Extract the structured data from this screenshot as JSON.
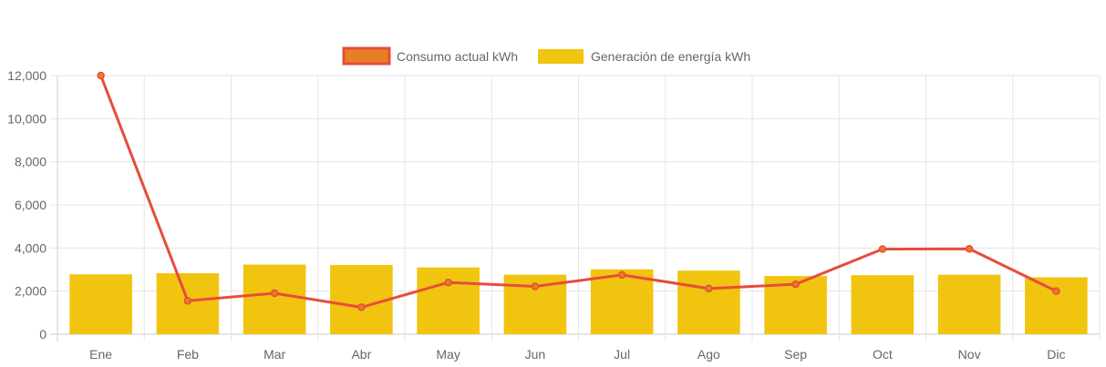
{
  "chart_data": {
    "type": "bar",
    "categories": [
      "Ene",
      "Feb",
      "Mar",
      "Abr",
      "May",
      "Jun",
      "Jul",
      "Ago",
      "Sep",
      "Oct",
      "Nov",
      "Dic"
    ],
    "series": [
      {
        "name": "Consumo actual kWh",
        "type": "line",
        "values": [
          12000,
          1550,
          1900,
          1250,
          2400,
          2220,
          2750,
          2120,
          2320,
          3950,
          3960,
          2000
        ]
      },
      {
        "name": "Generación de energía kWh",
        "type": "bar",
        "values": [
          2780,
          2830,
          3230,
          3210,
          3100,
          2760,
          3010,
          2950,
          2700,
          2740,
          2760,
          2640
        ]
      }
    ],
    "y_ticks": [
      "0",
      "2,000",
      "4,000",
      "6,000",
      "8,000",
      "10,000",
      "12,000"
    ],
    "ylim": [
      0,
      12000
    ],
    "grid": true,
    "legend_position": "top-center",
    "colors": {
      "line": "#e74c3c",
      "line_point_fill": "#e67e22",
      "bar": "#f1c40f",
      "legend_line_box": "#e67e22",
      "grid": "#e5e5e5",
      "text": "#666666"
    }
  }
}
